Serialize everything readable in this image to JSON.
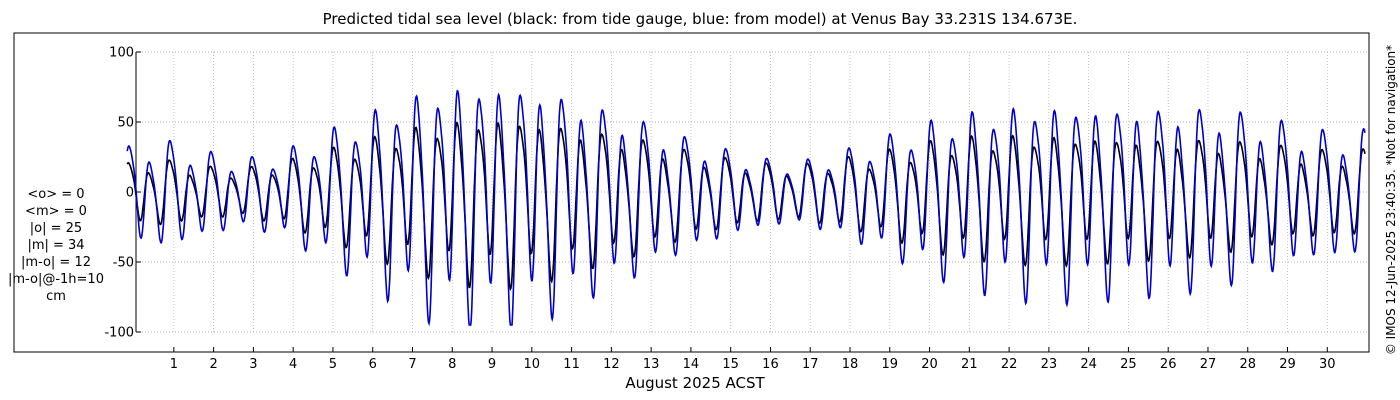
{
  "chart_data": {
    "type": "line",
    "title": "Predicted tidal sea level (black: from tide gauge, blue: from model) at Venus Bay 33.231S 134.673E.",
    "xlabel": "August 2025 ACST",
    "ylabel": "",
    "xlim": [
      0.3,
      31.3
    ],
    "ylim": [
      -105,
      105
    ],
    "yticks": [
      -100,
      -50,
      0,
      50,
      100
    ],
    "xticks": [
      "1",
      "2",
      "3",
      "4",
      "5",
      "6",
      "7",
      "8",
      "9",
      "10",
      "11",
      "12",
      "13",
      "14",
      "15",
      "16",
      "17",
      "18",
      "19",
      "20",
      "21",
      "22",
      "23",
      "24",
      "25",
      "26",
      "27",
      "28",
      "29",
      "30"
    ],
    "grid": true,
    "series": [
      {
        "name": "black: from tide gauge",
        "color": "#000000",
        "x": [
          0.08,
          1.0,
          1.9,
          2.9,
          3.9,
          4.9,
          5.9,
          6.9,
          7.9,
          8.9,
          9.9,
          10.9,
          11.9,
          12.9,
          13.9,
          14.9,
          15.9,
          16.9,
          17.9,
          18.9,
          19.9,
          20.9,
          21.9,
          22.9,
          23.9,
          24.9,
          25.9,
          26.9,
          27.9,
          28.9,
          29.9,
          31.0
        ],
        "amp": [
          18,
          20,
          16,
          14,
          18,
          25,
          32,
          40,
          46,
          50,
          50,
          46,
          40,
          35,
          28,
          22,
          18,
          16,
          20,
          24,
          30,
          35,
          37,
          38,
          38,
          37,
          36,
          35,
          33,
          30,
          26,
          26
        ]
      },
      {
        "name": "blue: from model",
        "color": "#0000cc",
        "x": [
          0.08,
          1.0,
          1.9,
          2.9,
          3.9,
          4.9,
          5.9,
          6.9,
          7.9,
          8.9,
          9.9,
          10.9,
          11.9,
          12.9,
          13.9,
          14.9,
          15.9,
          16.9,
          17.9,
          18.9,
          19.9,
          20.9,
          21.9,
          22.9,
          23.9,
          24.9,
          25.9,
          26.9,
          27.9,
          28.9,
          29.9,
          31.0
        ],
        "amp": [
          28,
          32,
          26,
          20,
          24,
          36,
          48,
          60,
          70,
          73,
          72,
          66,
          56,
          47,
          36,
          28,
          21,
          18,
          24,
          32,
          42,
          50,
          55,
          58,
          58,
          57,
          56,
          55,
          52,
          46,
          38,
          38
        ]
      }
    ]
  },
  "stats": {
    "mean_obs": "<o> = 0",
    "mean_model": "<m> = 0",
    "abs_obs": "|o| = 25",
    "abs_model": "|m| = 34",
    "abs_diff": "|m-o| = 12",
    "abs_diff_lag": "|m-o|@-1h=10",
    "unit": "cm"
  },
  "credit": "© IMOS 12-Jun-2025 23:40:35. *Not for navigation*"
}
